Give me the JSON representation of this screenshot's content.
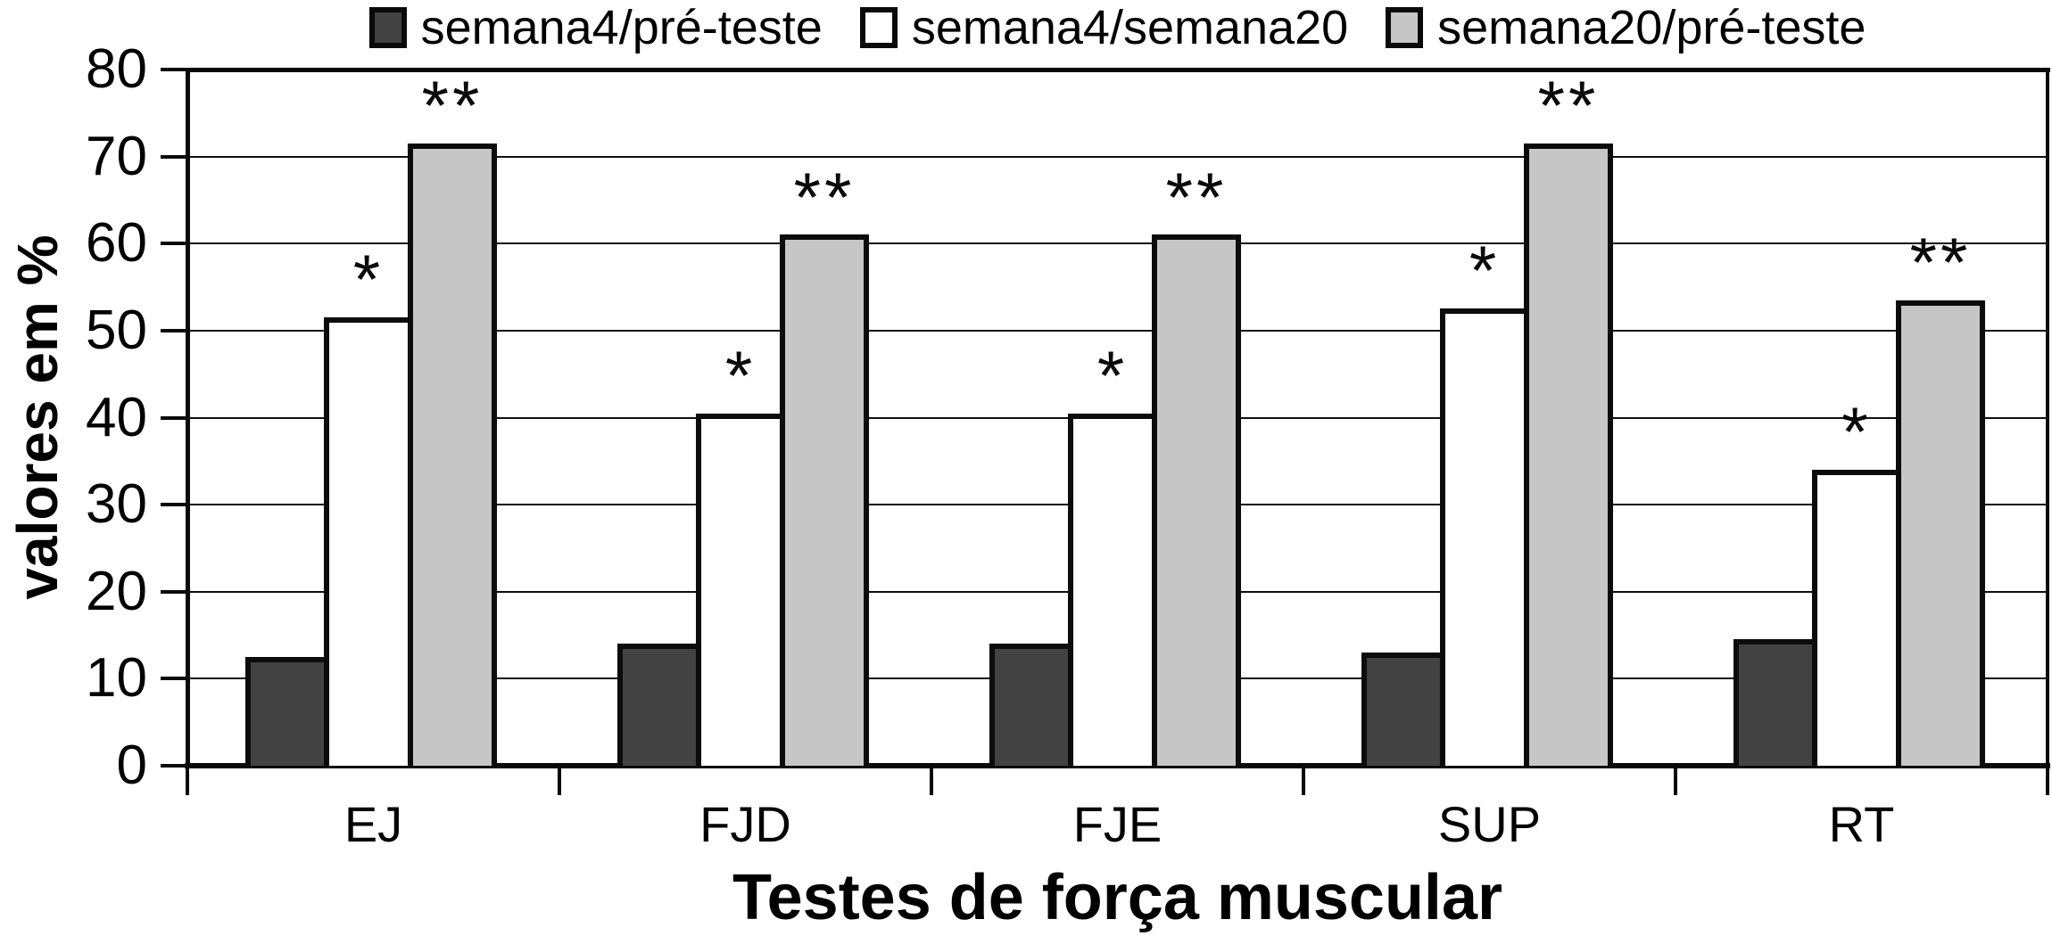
{
  "figure": {
    "background": "#ffffff",
    "axis_color": "#0a0a0a",
    "bar_border_color": "#0c0c0c"
  },
  "chart_data": {
    "type": "bar",
    "title": "",
    "xlabel": "Testes de força muscular",
    "ylabel": "valores em %",
    "ylim": [
      0,
      80
    ],
    "yticks": [
      0,
      10,
      20,
      30,
      40,
      50,
      60,
      70,
      80
    ],
    "grid": true,
    "legend_position": "top",
    "categories": [
      "EJ",
      "FJD",
      "FJE",
      "SUP",
      "RT"
    ],
    "series": [
      {
        "name": "semana4/pré-teste",
        "color": "#424242",
        "values": [
          12.5,
          14,
          14,
          13,
          14.5
        ],
        "significance": [
          "",
          "",
          "",
          "",
          ""
        ]
      },
      {
        "name": "semana4/semana20",
        "color": "#ffffff",
        "values": [
          51.5,
          40.5,
          40.5,
          52.5,
          34
        ],
        "significance": [
          "*",
          "*",
          "*",
          "*",
          "*"
        ]
      },
      {
        "name": "semana20/pré-teste",
        "color": "#c6c6c6",
        "values": [
          71.5,
          61,
          61,
          71.5,
          53.5
        ],
        "significance": [
          "**",
          "**",
          "**",
          "**",
          "**"
        ]
      }
    ]
  }
}
